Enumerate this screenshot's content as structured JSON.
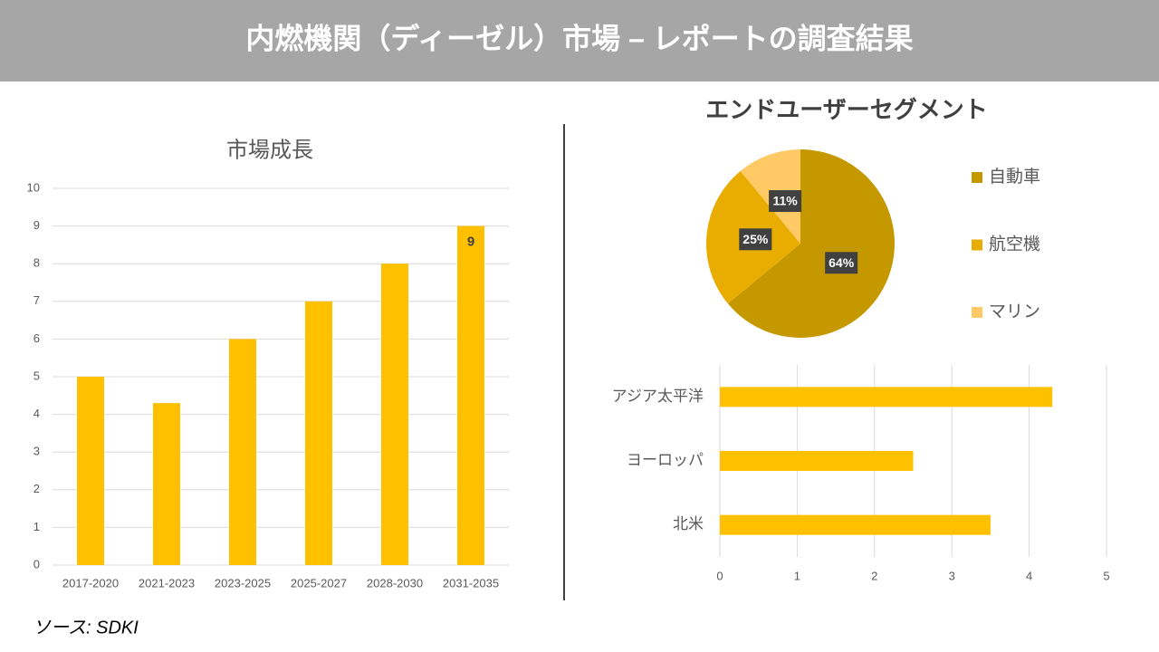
{
  "header": {
    "title": "内燃機関（ディーゼル）市場 – レポートの調査結果"
  },
  "source": "ソース: SDKI",
  "chart_data": [
    {
      "type": "bar",
      "title": "市場成長",
      "categories": [
        "2017-2020",
        "2021-2023",
        "2023-2025",
        "2025-2027",
        "2028-2030",
        "2031-2035"
      ],
      "values": [
        5,
        4.3,
        6,
        7,
        8,
        9
      ],
      "value_labels": [
        null,
        null,
        null,
        null,
        null,
        "9"
      ],
      "color": "#ffc000",
      "ylim": [
        0,
        10
      ],
      "yticks": [
        0,
        1,
        2,
        3,
        4,
        5,
        6,
        7,
        8,
        9,
        10
      ],
      "grid": true
    },
    {
      "type": "pie",
      "title": "エンドユーザーセグメント",
      "categories": [
        "自動車",
        "航空機",
        "マリン"
      ],
      "values": [
        64,
        25,
        11
      ],
      "value_labels": [
        "64%",
        "25%",
        "11%"
      ],
      "colors": [
        "#c59800",
        "#e8ad00",
        "#ffc966"
      ],
      "legend": "right"
    },
    {
      "type": "hbar",
      "categories": [
        "アジア太平洋",
        "ヨーロッパ",
        "北米"
      ],
      "values": [
        4.3,
        2.5,
        3.5
      ],
      "color": "#ffc000",
      "xlim": [
        0,
        5
      ],
      "xticks": [
        0,
        1,
        2,
        3,
        4,
        5
      ],
      "grid": true
    }
  ]
}
